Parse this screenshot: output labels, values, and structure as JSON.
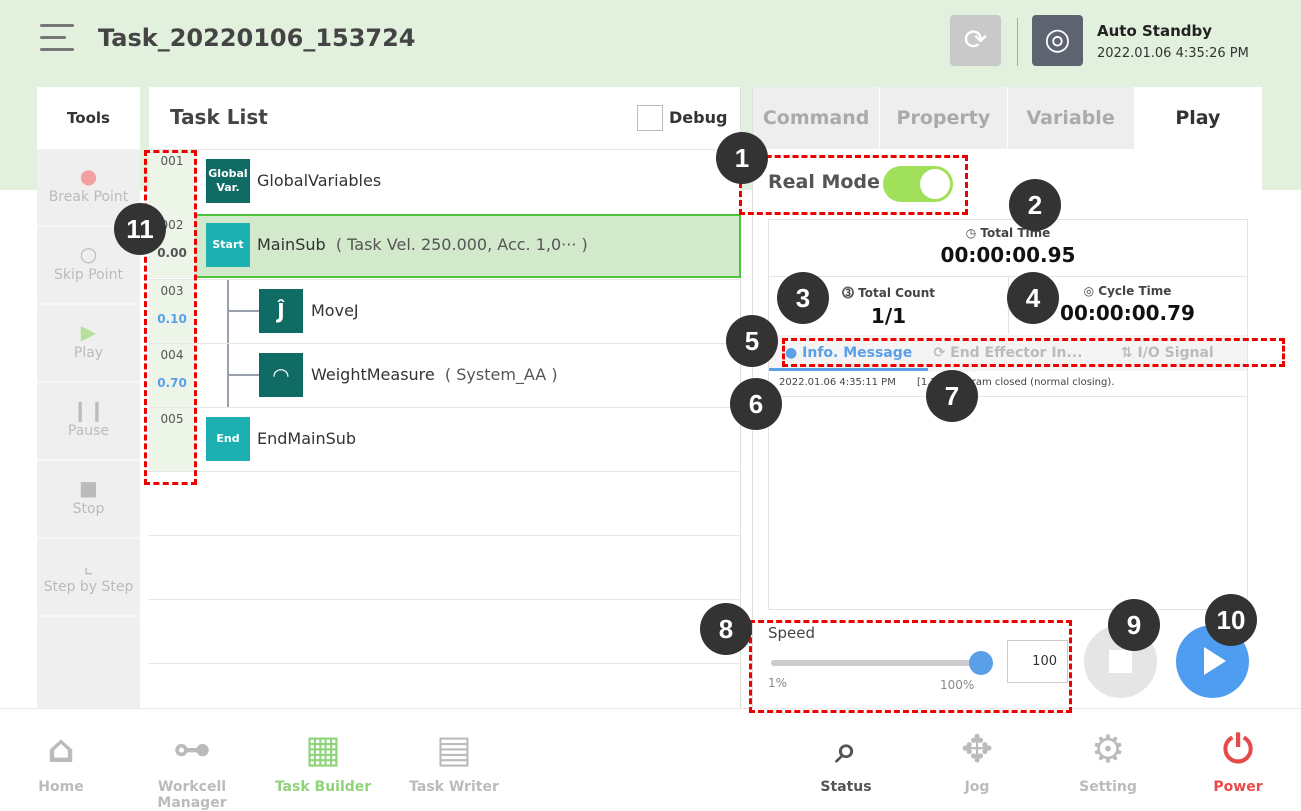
{
  "header": {
    "title": "Task_20220106_153724",
    "status_title": "Auto Standby",
    "status_time": "2022.01.06 4:35:26 PM"
  },
  "tools": {
    "title": "Tools",
    "items": [
      {
        "label": "Break Point",
        "icon": "break-point-icon"
      },
      {
        "label": "Skip Point",
        "icon": "skip-point-icon"
      },
      {
        "label": "Play",
        "icon": "play-icon"
      },
      {
        "label": "Pause",
        "icon": "pause-icon"
      },
      {
        "label": "Stop",
        "icon": "stop-icon"
      },
      {
        "label": "Step by Step",
        "icon": "step-icon"
      }
    ]
  },
  "tasklist": {
    "title": "Task List",
    "debug_label": "Debug",
    "rows": [
      {
        "num": "001",
        "time": "",
        "badge": "Global Var.",
        "label": "GlobalVariables",
        "param": ""
      },
      {
        "num": "002",
        "time": "0.00",
        "badge": "Start",
        "label": "MainSub",
        "param": "( Task Vel. 250.000, Acc. 1,0··· )"
      },
      {
        "num": "003",
        "time": "0.10",
        "badge": "",
        "label": "MoveJ",
        "param": ""
      },
      {
        "num": "004",
        "time": "0.70",
        "badge": "",
        "label": "WeightMeasure",
        "param": "( System_AA )"
      },
      {
        "num": "005",
        "time": "",
        "badge": "End",
        "label": "EndMainSub",
        "param": ""
      }
    ]
  },
  "right": {
    "tabs": [
      "Command",
      "Property",
      "Variable",
      "Play"
    ],
    "active_tab": "Play",
    "real_mode_label": "Real Mode",
    "real_mode_on": true,
    "total_time_label": "Total Time",
    "total_time": "00:00:00.95",
    "total_count_label": "Total Count",
    "total_count": "1/1",
    "cycle_time_label": "Cycle Time",
    "cycle_time": "00:00:00.79",
    "subtabs": [
      "Info. Message",
      "End Effector In...",
      "I/O Signal"
    ],
    "message": {
      "time": "2022.01.06 4:35:11 PM",
      "text": "[1.2... Program closed (normal closing)."
    },
    "speed_label": "Speed",
    "speed_min": "1%",
    "speed_max": "100%",
    "speed_value": "100",
    "speed_percent": 100
  },
  "nav": [
    "Home",
    "Workcell Manager",
    "Task Builder",
    "Task Writer",
    "Status",
    "Jog",
    "Setting",
    "Power"
  ],
  "markers": [
    "1",
    "2",
    "3",
    "4",
    "5",
    "6",
    "7",
    "8",
    "9",
    "10",
    "11"
  ],
  "colors": {
    "accent": "#5aa0e8",
    "header_bg": "#e2f1dd",
    "active_nav": "#8fd37a",
    "power": "#e84a4a",
    "toggle": "#a1e05a"
  }
}
